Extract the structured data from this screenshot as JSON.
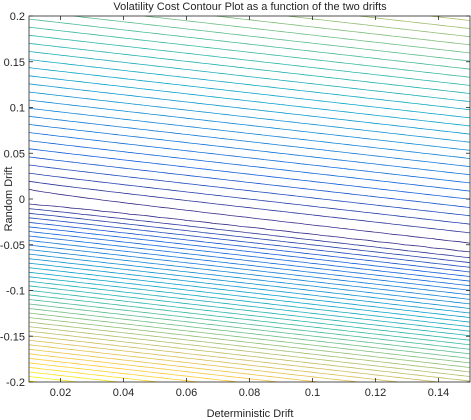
{
  "chart_data": {
    "type": "contour",
    "title": "Volatility Cost Contour Plot as a function of the two drifts",
    "xlabel": "Deterministic Drift",
    "ylabel": "Random Drift",
    "xlim": [
      0.01,
      0.15
    ],
    "ylim": [
      -0.2,
      0.2
    ],
    "xticks": [
      0.02,
      0.04,
      0.06,
      0.08,
      0.1,
      0.12,
      0.14
    ],
    "xtick_labels": [
      "0.02",
      "0.04",
      "0.06",
      "0.08",
      "0.1",
      "0.12",
      "0.14"
    ],
    "yticks": [
      -0.2,
      -0.15,
      -0.1,
      -0.05,
      0,
      0.05,
      0.1,
      0.15,
      0.2
    ],
    "ytick_labels": [
      "-0.2",
      "-0.15",
      "-0.1",
      "-0.05",
      "0",
      "0.05",
      "0.1",
      "0.15",
      "0.2"
    ],
    "colormap": "parula",
    "colormap_stops": [
      "#352a87",
      "#0f5cdd",
      "#1481d6",
      "#06a4ca",
      "#2eb7a4",
      "#87bf77",
      "#d1bb59",
      "#fec832",
      "#f9fb0e"
    ],
    "contour_levels": 40,
    "grid": false,
    "box": true
  }
}
